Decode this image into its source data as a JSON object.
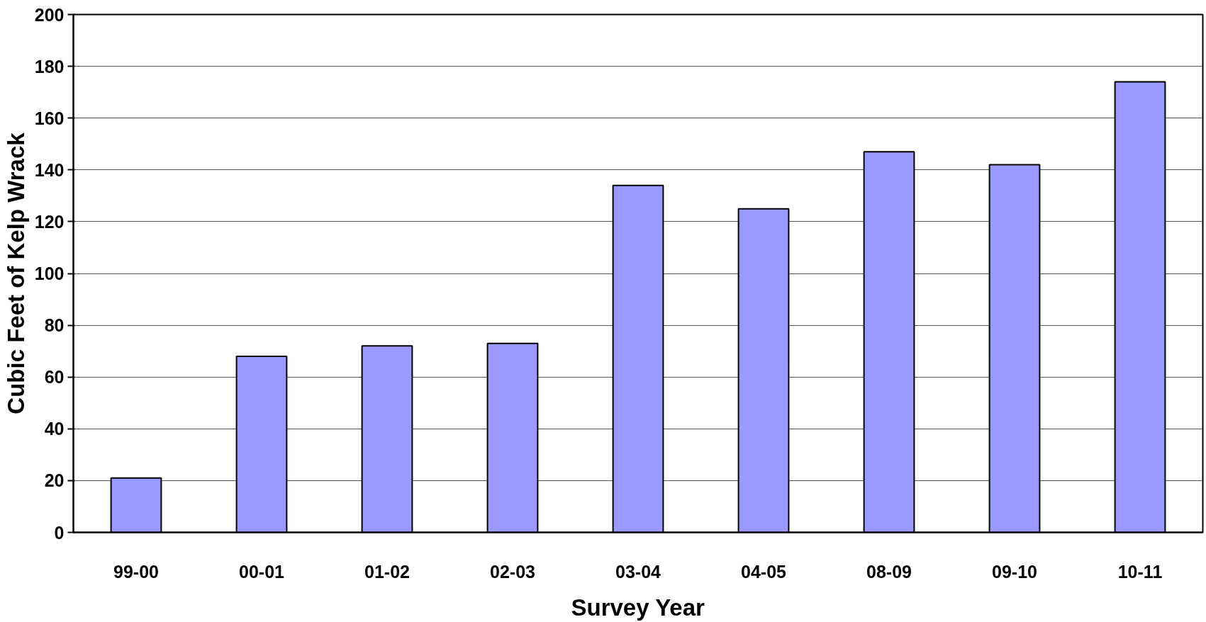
{
  "chart_data": {
    "type": "bar",
    "xlabel": "Survey Year",
    "ylabel": "Cubic Feet of Kelp Wrack",
    "categories": [
      "99-00",
      "00-01",
      "01-02",
      "02-03",
      "03-04",
      "04-05",
      "08-09",
      "09-10",
      "10-11"
    ],
    "values": [
      21,
      68,
      72,
      73,
      134,
      125,
      147,
      142,
      174
    ],
    "color": "#9999ff",
    "ylim": [
      0,
      200
    ],
    "yticks": [
      0,
      20,
      40,
      60,
      80,
      100,
      120,
      140,
      160,
      180,
      200
    ],
    "grid": "y"
  }
}
